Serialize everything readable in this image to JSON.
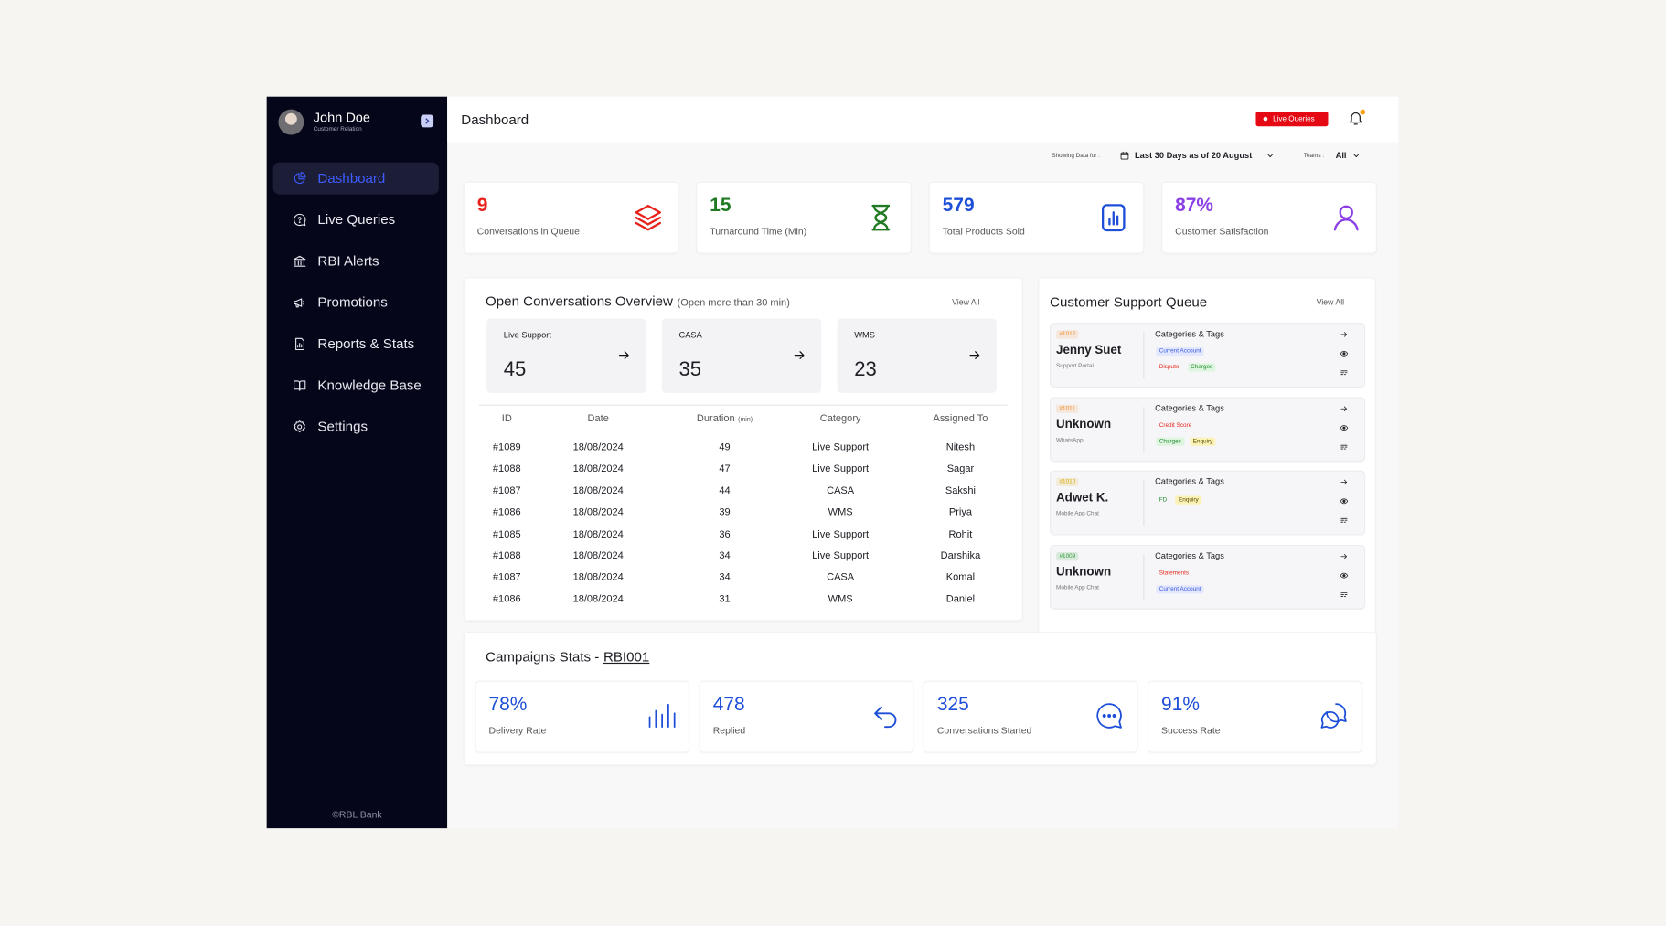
{
  "sidebar": {
    "user": {
      "name": "John Doe",
      "role": "Customer Relation"
    },
    "nav": [
      "Dashboard",
      "Live Queries",
      "RBI Alerts",
      "Promotions",
      "Reports & Stats",
      "Knowledge Base",
      "Settings"
    ],
    "footer": "©RBL Bank"
  },
  "header": {
    "title": "Dashboard",
    "live_button": "Live Queries"
  },
  "filters": {
    "showing_label": "Showing Data for :",
    "period": "Last 30 Days as of 20 August",
    "teams_label": "Teams :",
    "teams_value": "All"
  },
  "kpis": [
    {
      "value": 9,
      "label": "Conversations in Queue",
      "color": "#e8221b"
    },
    {
      "value": 15,
      "label": "Turnaround Time (Min)",
      "color": "#1f7a22"
    },
    {
      "value": 579,
      "label": "Total Products Sold",
      "color": "#1d4ed8"
    },
    {
      "value": "87%",
      "label": "Customer Satisfaction",
      "color": "#8b3fe6"
    }
  ],
  "open_conversations": {
    "title": "Open Conversations Overview",
    "note": "(Open more than 30 min)",
    "view_all": "View All",
    "cards": [
      {
        "label": "Live Support",
        "value": 45
      },
      {
        "label": "CASA",
        "value": 35
      },
      {
        "label": "WMS",
        "value": 23
      }
    ],
    "table": {
      "headers": [
        "ID",
        "Date",
        "Duration",
        "Category",
        "Assigned To"
      ],
      "duration_unit": "(min)",
      "rows": [
        [
          "#1089",
          "18/08/2024",
          49,
          "Live Support",
          "Nitesh"
        ],
        [
          "#1088",
          "18/08/2024",
          47,
          "Live Support",
          "Sagar"
        ],
        [
          "#1087",
          "18/08/2024",
          44,
          "CASA",
          "Sakshi"
        ],
        [
          "#1086",
          "18/08/2024",
          39,
          "WMS",
          "Priya"
        ],
        [
          "#1085",
          "18/08/2024",
          36,
          "Live Support",
          "Rohit"
        ],
        [
          "#1088",
          "18/08/2024",
          34,
          "Live Support",
          "Darshika"
        ],
        [
          "#1087",
          "18/08/2024",
          34,
          "CASA",
          "Komal"
        ],
        [
          "#1086",
          "18/08/2024",
          31,
          "WMS",
          "Daniel"
        ]
      ]
    }
  },
  "queue": {
    "title": "Customer Support Queue",
    "view_all": "View All",
    "items": [
      {
        "id": "#1012",
        "id_color": "#f08a24",
        "name": "Jenny Suet",
        "source": "Support Portal",
        "tags_title": "Categories & Tags",
        "tags": [
          [
            {
              "text": "Current Account",
              "color": "#3b5bdb",
              "bg": "#e3e8ff"
            }
          ],
          [
            {
              "text": "Dispute",
              "color": "#e5261b",
              "bg": "transparent"
            },
            {
              "text": "Charges",
              "color": "#1f8a2e",
              "bg": "#def5df"
            }
          ]
        ]
      },
      {
        "id": "#1011",
        "id_color": "#f08a24",
        "name": "Unknown",
        "source": "WhatsApp",
        "tags_title": "Categories & Tags",
        "tags": [
          [
            {
              "text": "Credit Score",
              "color": "#e5261b",
              "bg": "transparent"
            }
          ],
          [
            {
              "text": "Charges",
              "color": "#1f8a2e",
              "bg": "#def5df"
            },
            {
              "text": "Enquiry",
              "color": "#5a4a00",
              "bg": "#fbf2b8"
            }
          ]
        ]
      },
      {
        "id": "#1010",
        "id_color": "#d9a800",
        "name": "Adwet K.",
        "source": "Mobile App Chat",
        "tags_title": "Categories & Tags",
        "tags": [
          [
            {
              "text": "FD",
              "color": "#1f8a2e",
              "bg": "transparent"
            },
            {
              "text": "Enquiry",
              "color": "#5a4a00",
              "bg": "#fbf2b8"
            }
          ]
        ]
      },
      {
        "id": "#1009",
        "id_color": "#2e9a34",
        "name": "Unknown",
        "source": "Mobile App Chat",
        "tags_title": "Categories & Tags",
        "tags": [
          [
            {
              "text": "Statements",
              "color": "#e5261b",
              "bg": "transparent"
            }
          ],
          [
            {
              "text": "Current Account",
              "color": "#3b5bdb",
              "bg": "#e3e8ff"
            }
          ]
        ]
      }
    ]
  },
  "campaigns": {
    "title": "Campaigns Stats -",
    "code": "RBI001",
    "stats": [
      {
        "value": "78%",
        "label": "Delivery Rate"
      },
      {
        "value": 478,
        "label": "Replied"
      },
      {
        "value": 325,
        "label": "Conversations Started"
      },
      {
        "value": "91%",
        "label": "Success Rate"
      }
    ]
  }
}
